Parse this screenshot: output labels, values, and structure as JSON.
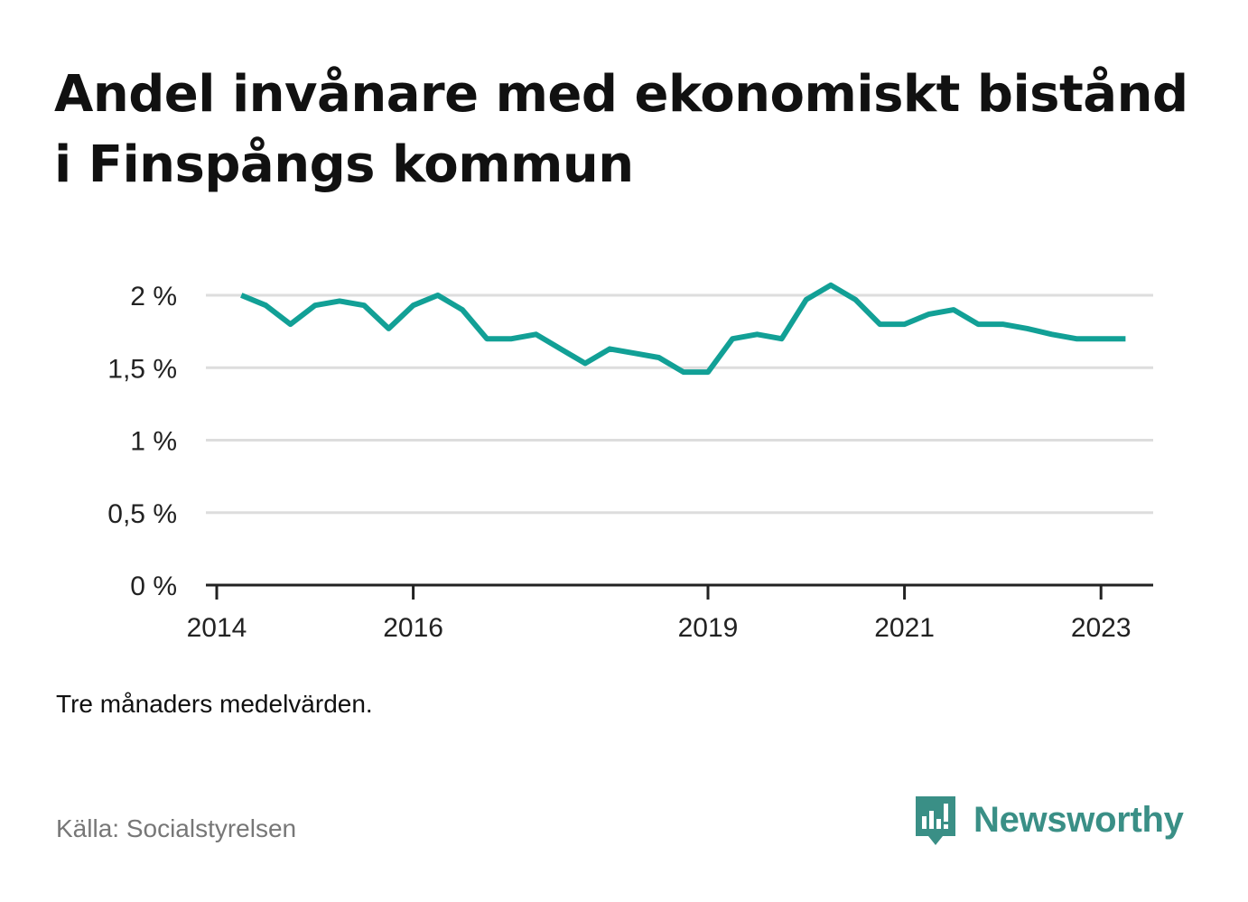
{
  "title": "Andel invånare med ekonomiskt bistånd i Finspångs kommun",
  "note": "Tre månaders medelvärden.",
  "source": "Källa: Socialstyrelsen",
  "brand": {
    "name": "Newsworthy",
    "icon": "newsworthy-logo-icon",
    "color": "#3a8f86"
  },
  "chart_data": {
    "type": "line",
    "title": "Andel invånare med ekonomiskt bistånd i Finspångs kommun",
    "xlabel": "",
    "ylabel": "",
    "x_ticks": [
      "2014",
      "2016",
      "2019",
      "2021",
      "2023"
    ],
    "y_ticks": [
      "0 %",
      "0,5 %",
      "1 %",
      "1,5 %",
      "2 %"
    ],
    "ylim": [
      0,
      2.0
    ],
    "xlim": [
      "2014-01",
      "2023-07"
    ],
    "grid": true,
    "line_color": "#12a096",
    "series": [
      {
        "x": [
          "2014-04",
          "2014-07",
          "2014-10",
          "2015-01",
          "2015-04",
          "2015-07",
          "2015-10",
          "2016-01",
          "2016-04",
          "2016-07",
          "2016-10",
          "2017-01",
          "2017-04",
          "2017-07",
          "2017-10",
          "2018-01",
          "2018-04",
          "2018-07",
          "2018-10",
          "2019-01",
          "2019-04",
          "2019-07",
          "2019-10",
          "2020-01",
          "2020-04",
          "2020-07",
          "2020-10",
          "2021-01",
          "2021-04",
          "2021-07",
          "2021-10",
          "2022-01",
          "2022-04",
          "2022-07",
          "2022-10",
          "2023-01",
          "2023-04"
        ],
        "values": [
          2.0,
          1.93,
          1.8,
          1.93,
          1.96,
          1.93,
          1.77,
          1.93,
          2.0,
          1.9,
          1.7,
          1.7,
          1.73,
          1.63,
          1.53,
          1.63,
          1.6,
          1.57,
          1.47,
          1.47,
          1.7,
          1.73,
          1.7,
          1.97,
          2.07,
          1.97,
          1.8,
          1.8,
          1.87,
          1.9,
          1.8,
          1.8,
          1.77,
          1.73,
          1.7,
          1.7,
          1.7
        ]
      }
    ]
  }
}
